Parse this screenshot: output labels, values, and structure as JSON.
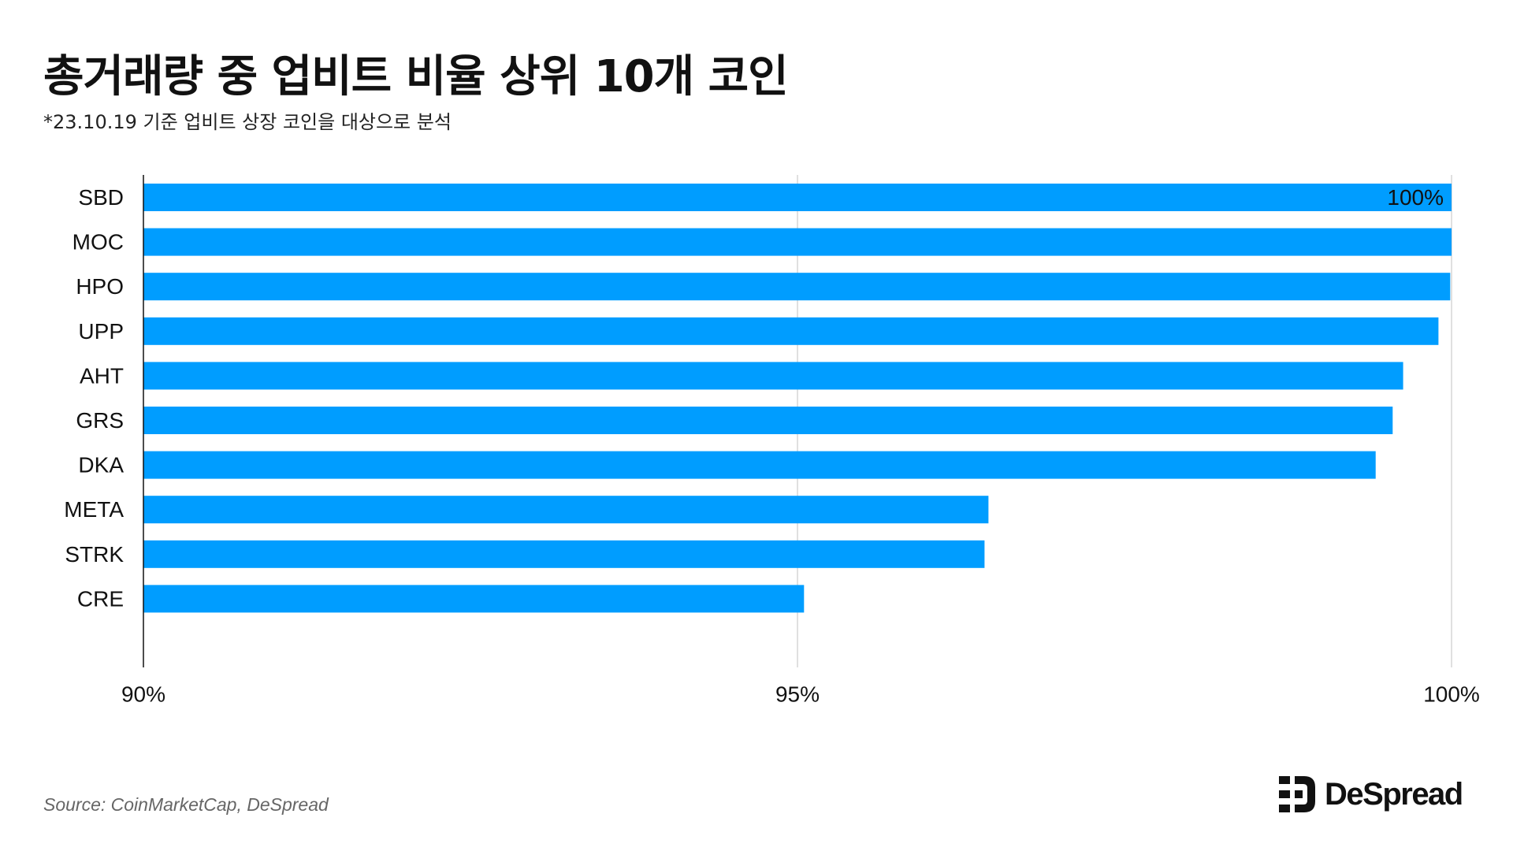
{
  "header": {
    "title": "총거래량 중 업비트 비율 상위 10개 코인",
    "subtitle": "*23.10.19 기준 업비트 상장 코인을 대상으로 분석"
  },
  "footer": {
    "source": "Source: CoinMarketCap, DeSpread",
    "brand": "DeSpread"
  },
  "colors": {
    "bar": "#009DFF",
    "grid": "#D5D5D5",
    "axis": "#111111",
    "text": "#111111",
    "source": "#666666"
  },
  "icons": {
    "logo": "despread-logo-mark-icon"
  },
  "chart_data": {
    "type": "bar",
    "orientation": "horizontal",
    "categories": [
      "SBD",
      "MOC",
      "HPO",
      "UPP",
      "AHT",
      "GRS",
      "DKA",
      "META",
      "STRK",
      "CRE"
    ],
    "values": [
      100,
      100,
      99.99,
      99.9,
      99.63,
      99.55,
      99.42,
      96.46,
      96.43,
      95.05
    ],
    "xlim": [
      90,
      100
    ],
    "xticks": [
      90,
      95,
      100
    ],
    "xtick_labels": [
      "90%",
      "95%",
      "100%"
    ],
    "data_labels": [
      {
        "category": "SBD",
        "text": "100%"
      }
    ],
    "grid": "vertical",
    "title": "총거래량 중 업비트 비율 상위 10개 코인",
    "xlabel": "",
    "ylabel": ""
  }
}
